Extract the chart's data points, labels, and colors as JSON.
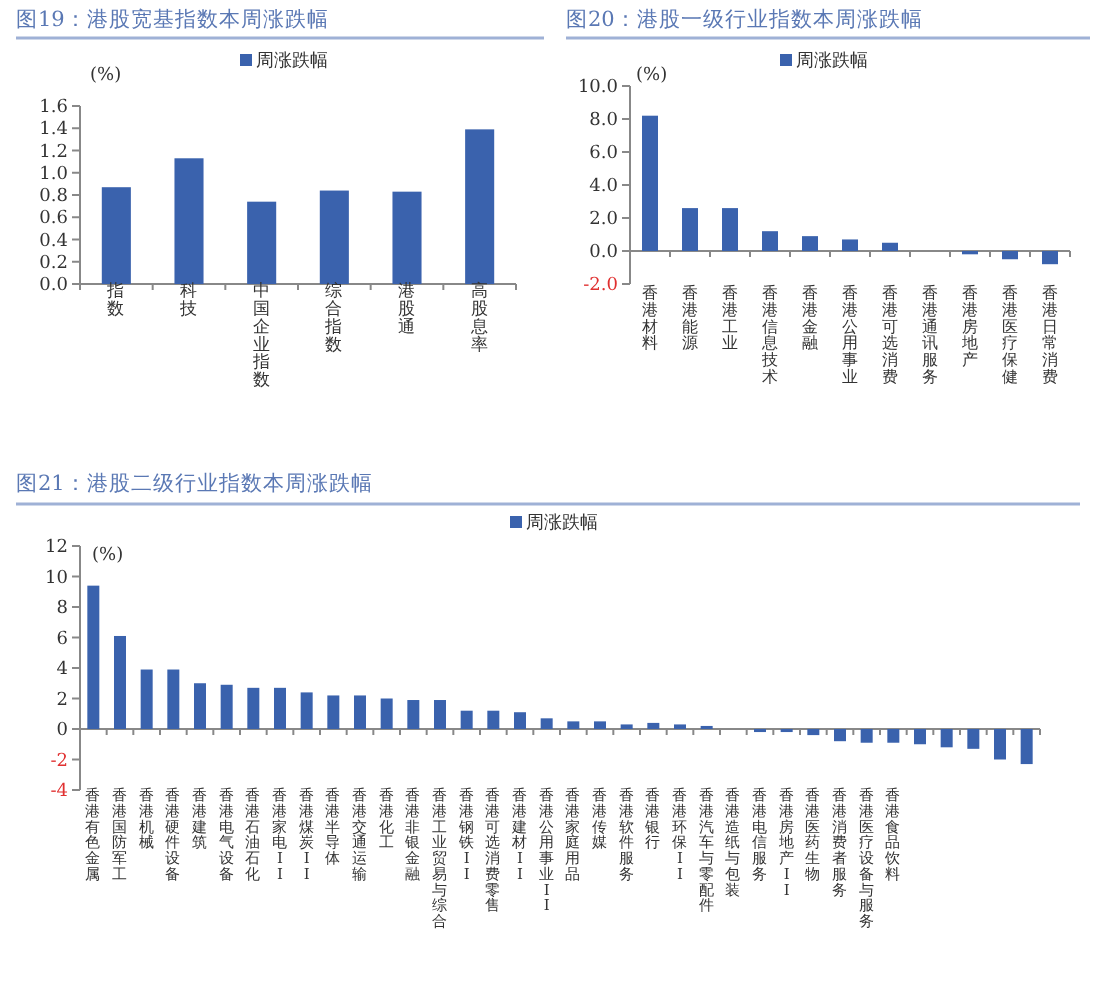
{
  "chart_data": [
    {
      "type": "bar",
      "title": "图19：港股宽基指数本周涨跌幅",
      "ylabel": "(%)",
      "legend": "top",
      "categories": [
        "指数",
        "科技",
        "中国企业指数",
        "综合指数",
        "港股通",
        "高股息率"
      ],
      "series": [
        {
          "name": "周涨跌幅",
          "color": "#3a62ad",
          "values": [
            0.87,
            1.13,
            0.74,
            0.84,
            0.83,
            1.39
          ]
        }
      ],
      "ylim": [
        0,
        1.6
      ],
      "yticks": [
        {
          "value": 0,
          "label": "0.0"
        },
        0.2,
        0.4,
        0.6,
        0.8,
        {
          "value": 1,
          "label": "1.0"
        },
        1.2,
        1.4,
        1.6
      ]
    },
    {
      "type": "bar",
      "title": "图20：港股一级行业指数本周涨跌幅",
      "ylabel": "(%)",
      "legend": "top",
      "categories": [
        "香港材料",
        "香港能源",
        "香港工业",
        "香港信息技术",
        "香港金融",
        "香港公用事业",
        "香港可选消费",
        "香港通讯服务",
        "香港房地产",
        "香港医疗保健",
        "香港日常消费"
      ],
      "series": [
        {
          "name": "周涨跌幅",
          "color": "#3a62ad",
          "values": [
            8.2,
            2.6,
            2.6,
            1.2,
            0.9,
            0.7,
            0.5,
            0.0,
            -0.2,
            -0.5,
            -0.8
          ]
        }
      ],
      "ylim": [
        -2,
        10
      ],
      "yticks": [
        {
          "value": -2,
          "label": "-2.0"
        },
        {
          "value": 0,
          "label": "0.0"
        },
        {
          "value": 2,
          "label": "2.0"
        },
        {
          "value": 4,
          "label": "4.0"
        },
        {
          "value": 6,
          "label": "6.0"
        },
        {
          "value": 8,
          "label": "8.0"
        },
        {
          "value": 10,
          "label": "10.0"
        }
      ]
    },
    {
      "type": "bar",
      "title": "图21：港股二级行业指数本周涨跌幅",
      "ylabel": "(%)",
      "legend": "top",
      "categories": [
        "香港有色金属",
        "香港国防军工",
        "香港机械",
        "香港硬件设备",
        "香港建筑",
        "香港电气设备",
        "香港石油石化",
        "香港家电II",
        "香港煤炭II",
        "香港半导体",
        "香港交通运输",
        "香港化工",
        "香港非银金融",
        "香港工业贸易与综合",
        "香港钢铁II",
        "香港可选消费零售",
        "香港建材II",
        "香港公用事业II",
        "香港家庭用品",
        "香港传媒",
        "香港软件服务",
        "香港银行",
        "香港环保II",
        "香港汽车与零配件",
        "香港造纸与包装",
        "香港电信服务",
        "香港房地产II",
        "香港医药生物",
        "香港消费者服务",
        "香港医疗设备与服务",
        "香港食品饮料",
        null,
        null,
        null,
        null,
        null
      ],
      "series": [
        {
          "name": "周涨跌幅",
          "color": "#3a62ad",
          "values": [
            9.4,
            6.1,
            3.9,
            3.9,
            3.0,
            2.9,
            2.7,
            2.7,
            2.4,
            2.2,
            2.2,
            2.0,
            1.9,
            1.9,
            1.2,
            1.2,
            1.1,
            0.7,
            0.5,
            0.5,
            0.3,
            0.4,
            0.3,
            0.2,
            0.0,
            -0.2,
            -0.2,
            -0.4,
            -0.8,
            -0.9,
            -0.9,
            -1.0,
            -1.2,
            -1.3,
            -2.0,
            -2.3
          ]
        }
      ],
      "ylim": [
        -4,
        12
      ],
      "yticks": [
        -4,
        -2,
        0,
        2,
        4,
        6,
        8,
        10,
        12
      ]
    }
  ]
}
